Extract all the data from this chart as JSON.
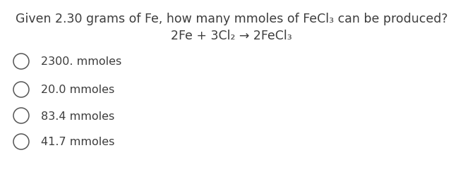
{
  "options": [
    "2300. mmoles",
    "20.0 mmoles",
    "83.4 mmoles",
    "41.7 mmoles"
  ],
  "background_color": "#ffffff",
  "text_color": "#3d3d3d",
  "font_size_question": 12.5,
  "font_size_options": 11.5,
  "sub2": "₂",
  "sub3": "₃",
  "arrow": "→",
  "q_line1_pre": "Given 2.30 grams of Fe, how many mmoles of FeCl",
  "q_line1_post": " can be produced?",
  "eq_pre": "2Fe + 3Cl",
  "eq_mid": " → 2FeCl",
  "fig_width": 6.56,
  "fig_height": 2.55,
  "dpi": 100
}
